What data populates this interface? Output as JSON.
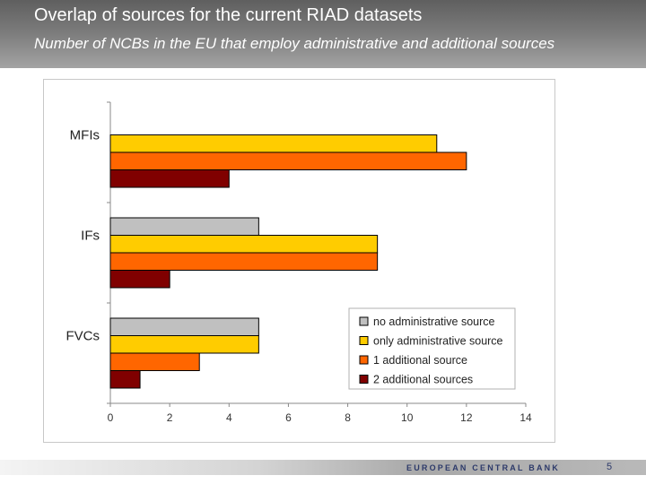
{
  "slide": {
    "title": "Overlap of sources for the current RIAD datasets",
    "subtitle": "Number of NCBs in the EU that employ administrative and additional sources"
  },
  "footer": {
    "logo_text": "EUROPEAN CENTRAL BANK",
    "page_number": "5"
  },
  "chart_data": {
    "type": "bar",
    "orientation": "horizontal",
    "title": "",
    "xlabel": "",
    "ylabel": "",
    "xlim": [
      0,
      14
    ],
    "xticks": [
      0,
      2,
      4,
      6,
      8,
      10,
      12,
      14
    ],
    "grid": false,
    "legend_position": "bottom-right",
    "categories": [
      "MFIs",
      "IFs",
      "FVCs"
    ],
    "series": [
      {
        "name": "no administrative source",
        "color": "#c0c0c0",
        "values": [
          0,
          5,
          5
        ]
      },
      {
        "name": "only administrative source",
        "color": "#ffcc00",
        "values": [
          11,
          9,
          5
        ]
      },
      {
        "name": "1 additional source",
        "color": "#ff6600",
        "values": [
          12,
          9,
          3
        ]
      },
      {
        "name": "2 additional sources",
        "color": "#800000",
        "values": [
          4,
          2,
          1
        ]
      }
    ]
  }
}
